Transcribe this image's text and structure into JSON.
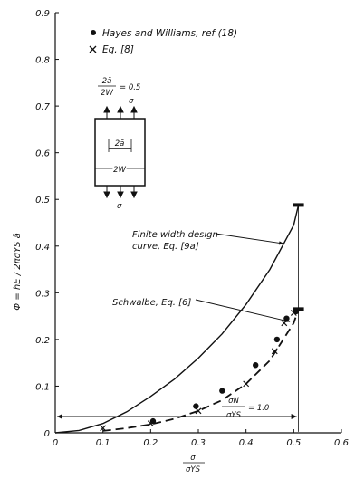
{
  "chart_data": {
    "type": "scatter",
    "title": "",
    "xlabel_num": "σ",
    "xlabel_den": "σYS",
    "ylabel": "Φ = hE / 2πσYS ā",
    "xlim": [
      0,
      0.6
    ],
    "ylim": [
      0,
      0.9
    ],
    "xticks": [
      "0",
      "0.1",
      "0.2",
      "0.3",
      "0.4",
      "0.5",
      "0.6"
    ],
    "yticks": [
      "0",
      "0.1",
      "0.2",
      "0.3",
      "0.4",
      "0.5",
      "0.6",
      "0.7",
      "0.8",
      "0.9"
    ],
    "grid": false,
    "legend_position": "top-left",
    "series": [
      {
        "name": "Hayes and Williams, ref (18)",
        "marker": "dot",
        "x": [
          0.205,
          0.295,
          0.35,
          0.42,
          0.465,
          0.485,
          0.505
        ],
        "y": [
          0.025,
          0.057,
          0.09,
          0.145,
          0.2,
          0.245,
          0.26
        ]
      },
      {
        "name": "Eq. [8]",
        "marker": "x",
        "x": [
          0.1,
          0.2,
          0.3,
          0.4,
          0.46,
          0.48,
          0.5
        ],
        "y": [
          0.01,
          0.02,
          0.047,
          0.105,
          0.175,
          0.235,
          0.257
        ]
      }
    ],
    "curves": [
      {
        "name": "Finite width design curve, Eq. [9a]",
        "style": "solid",
        "x": [
          0,
          0.05,
          0.1,
          0.15,
          0.2,
          0.25,
          0.3,
          0.35,
          0.4,
          0.45,
          0.5,
          0.51
        ],
        "y": [
          0,
          0.005,
          0.02,
          0.045,
          0.078,
          0.115,
          0.16,
          0.212,
          0.275,
          0.35,
          0.445,
          0.488
        ]
      },
      {
        "name": "Schwalbe, Eq. [6]",
        "style": "dashed",
        "x": [
          0.1,
          0.15,
          0.2,
          0.25,
          0.3,
          0.35,
          0.4,
          0.45,
          0.5,
          0.51
        ],
        "y": [
          0.004,
          0.01,
          0.018,
          0.03,
          0.047,
          0.07,
          0.105,
          0.155,
          0.235,
          0.265
        ]
      }
    ],
    "markers": [
      {
        "x": 0.51,
        "y": 0.488
      },
      {
        "x": 0.51,
        "y": 0.265
      }
    ],
    "annotations": [
      {
        "text": "Finite width design",
        "text2": "curve, Eq. [9a]"
      },
      {
        "text": "Schwalbe, Eq. [6]"
      },
      {
        "text_num": "σN",
        "text_eq": "= 1.0",
        "text_den": "σYS",
        "span_x": [
          0,
          0.51
        ]
      }
    ],
    "inset": {
      "ratio_num": "2ā",
      "ratio_den": "2W",
      "ratio_value": "= 0.5",
      "crack_label": "2ā",
      "width_label": "2W",
      "stress_label": "σ"
    }
  }
}
